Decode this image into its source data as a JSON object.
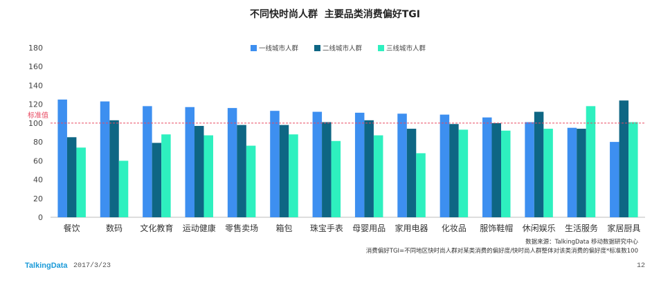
{
  "page": {
    "logo": "TalkingData",
    "date": "2017/3/23",
    "page_number": "12",
    "source": "数据来源：TalkingData 移动数据研究中心",
    "formula": "消费偏好TGI=不同地区快时尚人群对某类消费的偏好度/快时尚人群整体对该类消费的偏好度*标准数100"
  },
  "chart_data": {
    "type": "bar",
    "title": "不同快时尚人群  主要品类消费偏好TGI",
    "categories": [
      "餐饮",
      "数码",
      "文化教育",
      "运动健康",
      "零售卖场",
      "箱包",
      "珠宝手表",
      "母婴用品",
      "家用电器",
      "化妆品",
      "服饰鞋帽",
      "休闲娱乐",
      "生活服务",
      "家居厨具"
    ],
    "series": [
      {
        "name": "一线城市人群",
        "color": "#3d8ff0",
        "values": [
          125,
          123,
          118,
          117,
          116,
          113,
          112,
          111,
          110,
          109,
          106,
          101,
          95,
          80
        ]
      },
      {
        "name": "二线城市人群",
        "color": "#0e6684",
        "values": [
          85,
          103,
          79,
          97,
          98,
          98,
          101,
          103,
          94,
          99,
          100,
          112,
          94,
          124
        ]
      },
      {
        "name": "三线城市人群",
        "color": "#2ef0bf",
        "values": [
          74,
          60,
          88,
          87,
          76,
          88,
          81,
          87,
          68,
          93,
          92,
          94,
          118,
          101
        ]
      }
    ],
    "ylim": [
      0,
      180
    ],
    "yticks": [
      0,
      20,
      40,
      60,
      80,
      100,
      120,
      140,
      160,
      180
    ],
    "reference_line": {
      "value": 100,
      "label": "标准值",
      "color": "#e8475f"
    },
    "legend_position": "top-center",
    "grid": false
  }
}
